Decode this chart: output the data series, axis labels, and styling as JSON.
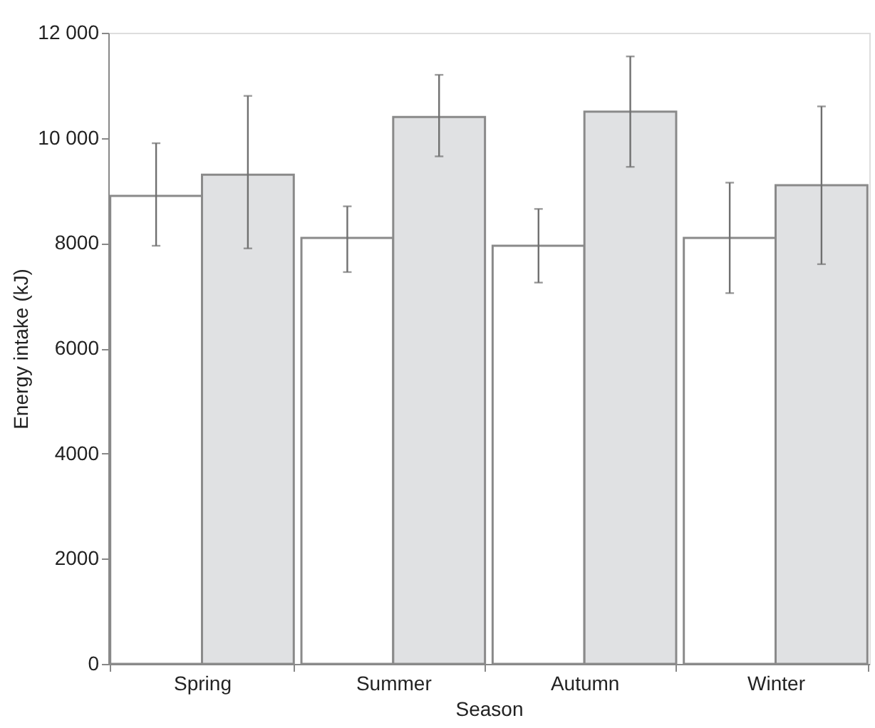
{
  "chart_data": {
    "type": "bar",
    "xlabel": "Season",
    "ylabel": "Energy intake (kJ)",
    "categories": [
      "Spring",
      "Summer",
      "Autumn",
      "Winter"
    ],
    "series": [
      {
        "color": "#ffffff",
        "values": [
          8900,
          8100,
          7950,
          8100
        ],
        "errors": [
          [
            7950,
            9900
          ],
          [
            7450,
            8700
          ],
          [
            7250,
            8650
          ],
          [
            7050,
            9150
          ]
        ]
      },
      {
        "color": "#e0e1e3",
        "values": [
          9300,
          10400,
          10500,
          9100
        ],
        "errors": [
          [
            7900,
            10800
          ],
          [
            9650,
            11200
          ],
          [
            9450,
            11550
          ],
          [
            7600,
            10600
          ]
        ]
      }
    ],
    "ylim": [
      0,
      12000
    ],
    "yticks": [
      0,
      2000,
      4000,
      6000,
      8000,
      {
        "value": 10000,
        "label": "10 000"
      },
      {
        "value": 12000,
        "label": "12 000"
      }
    ],
    "grid": false,
    "legend": false
  }
}
